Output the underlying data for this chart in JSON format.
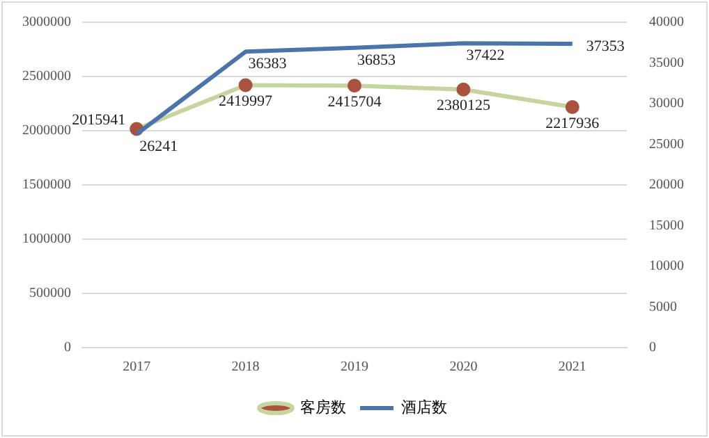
{
  "chart_data": {
    "type": "line",
    "categories": [
      "2017",
      "2018",
      "2019",
      "2020",
      "2021"
    ],
    "series": [
      {
        "name": "客房数",
        "color": "#c5d59f",
        "colors": [
          "#a9533e",
          "#a9533e",
          "#a9533e",
          "#a9533e",
          "#a9533e"
        ],
        "marker": "circle",
        "values": [
          2015941,
          2419997,
          2415704,
          2380125,
          2217936
        ]
      },
      {
        "name": "酒店数",
        "color": "#4a74aa",
        "axis": "y2",
        "marker": "none",
        "values": [
          26241,
          36383,
          36853,
          37422,
          37353
        ]
      }
    ],
    "ylim": [
      0,
      3000000
    ],
    "yticks": [
      0,
      500000,
      1000000,
      1500000,
      2000000,
      2500000,
      3000000
    ],
    "y2lim": [
      0,
      40000
    ],
    "y2ticks": [
      0,
      5000,
      10000,
      15000,
      20000,
      25000,
      30000,
      35000,
      40000
    ],
    "grid": "y",
    "legend": "bottom",
    "data_labels": true
  }
}
